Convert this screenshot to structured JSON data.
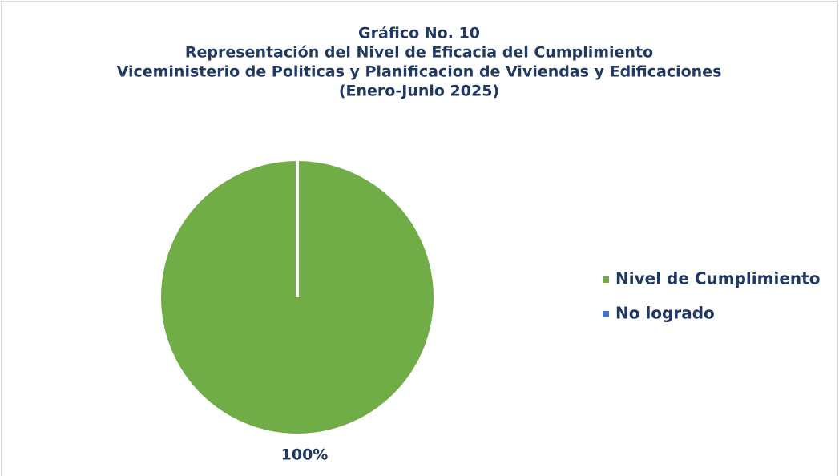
{
  "chart_data": {
    "type": "pie",
    "title": [
      "Gráfico No. 10",
      "Representación del Nivel de Eficacia del Cumplimiento",
      "Viceministerio de Politicas y Planificacion de Viviendas y Edificaciones",
      "(Enero-Junio 2025)"
    ],
    "categories": [
      "Nivel de Cumplimiento",
      "No logrado"
    ],
    "values": [
      100,
      0
    ],
    "value_labels": [
      "100%",
      null
    ],
    "colors": [
      "#70ad47",
      "#4472c4"
    ],
    "legend": "right"
  }
}
